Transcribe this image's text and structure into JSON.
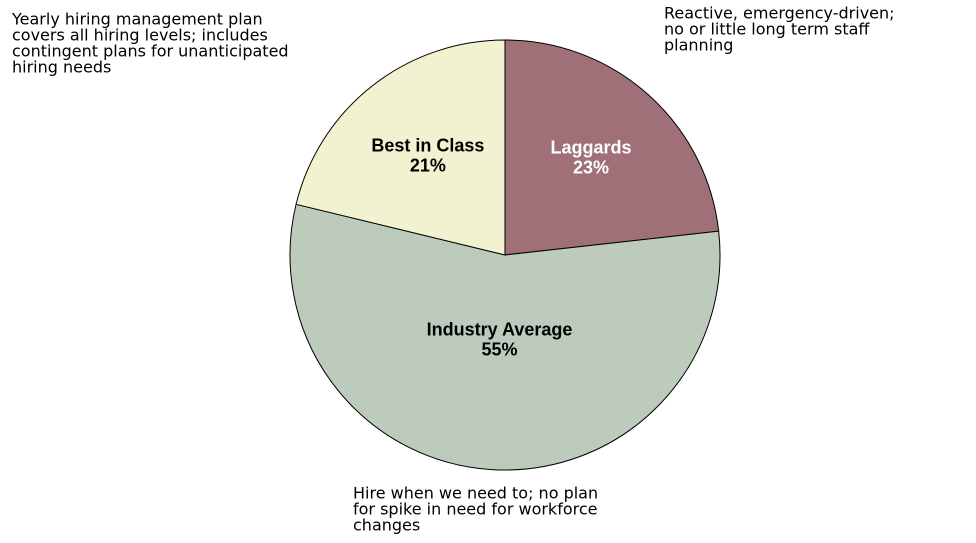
{
  "chart_data": {
    "type": "pie",
    "categories": [
      "Laggards",
      "Industry Average",
      "Best in Class"
    ],
    "values": [
      23,
      55,
      21
    ],
    "value_labels": [
      "23%",
      "55%",
      "21%"
    ],
    "colors": [
      "#a07078",
      "#bccbbb",
      "#f2f2d0"
    ],
    "label_colors": [
      "#ffffff",
      "#000000",
      "#000000"
    ],
    "annotations": [
      {
        "lines": [
          "Reactive, emergency-driven;",
          "no or little long term staff",
          "planning"
        ]
      },
      {
        "lines": [
          "Hire when we need to; no plan",
          "for spike in need for workforce",
          "changes"
        ]
      },
      {
        "lines": [
          "Yearly hiring management plan",
          "covers all hiring levels; includes",
          "contingent plans for unanticipated",
          "hiring needs"
        ]
      }
    ]
  }
}
